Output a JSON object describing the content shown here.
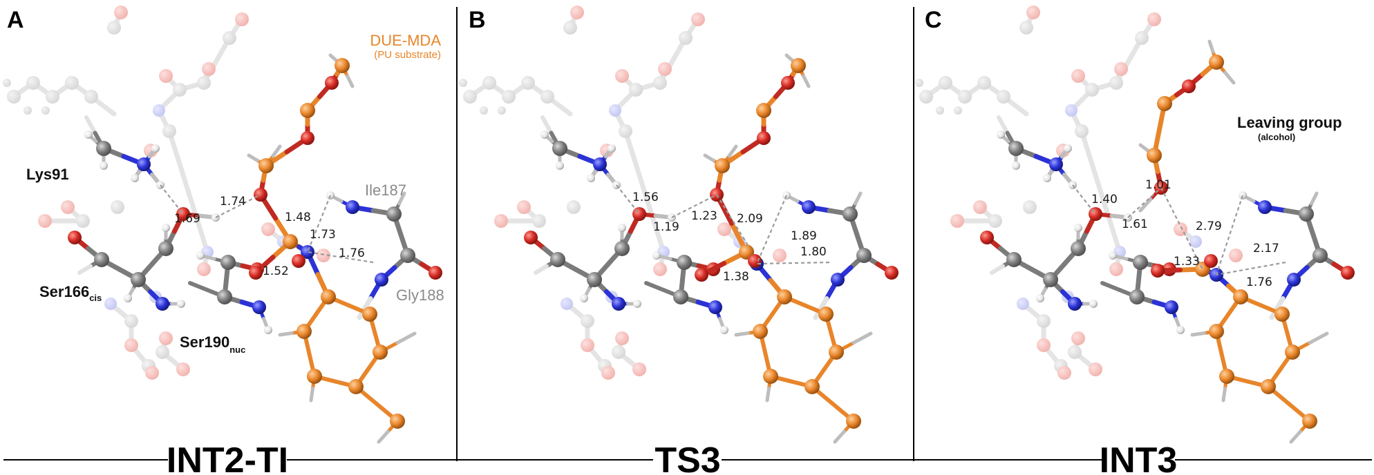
{
  "panels": [
    {
      "letter": "A",
      "state": "INT2-TI",
      "distances": [
        "1.69",
        "1.74",
        "1.48",
        "1.73",
        "1.76",
        "1.52"
      ],
      "residues": {
        "lys": "Lys91",
        "ser166": "Ser166",
        "ser166_sub": "cis",
        "ser190": "Ser190",
        "ser190_sub": "nuc",
        "ile": "Ile187",
        "gly": "Gly188"
      },
      "substrate": {
        "title": "DUE-MDA",
        "note": "(PU substrate)"
      }
    },
    {
      "letter": "B",
      "state": "TS3",
      "distances": [
        "1.56",
        "1.23",
        "1.19",
        "2.09",
        "1.89",
        "1.80",
        "1.38"
      ]
    },
    {
      "letter": "C",
      "state": "INT3",
      "distances": [
        "1.01",
        "1.40",
        "1.61",
        "2.79",
        "1.33",
        "2.17",
        "1.76"
      ],
      "leaving_group": {
        "title": "Leaving group",
        "note": "(alcohol)"
      }
    }
  ],
  "colors": {
    "carbon": "#7b7b7b",
    "oxygen": "#d42a22",
    "nitrogen": "#2b32d6",
    "hydrogen": "#e6e6e6",
    "substrate": "#e8852a",
    "ghost": "#d9d9d9"
  }
}
